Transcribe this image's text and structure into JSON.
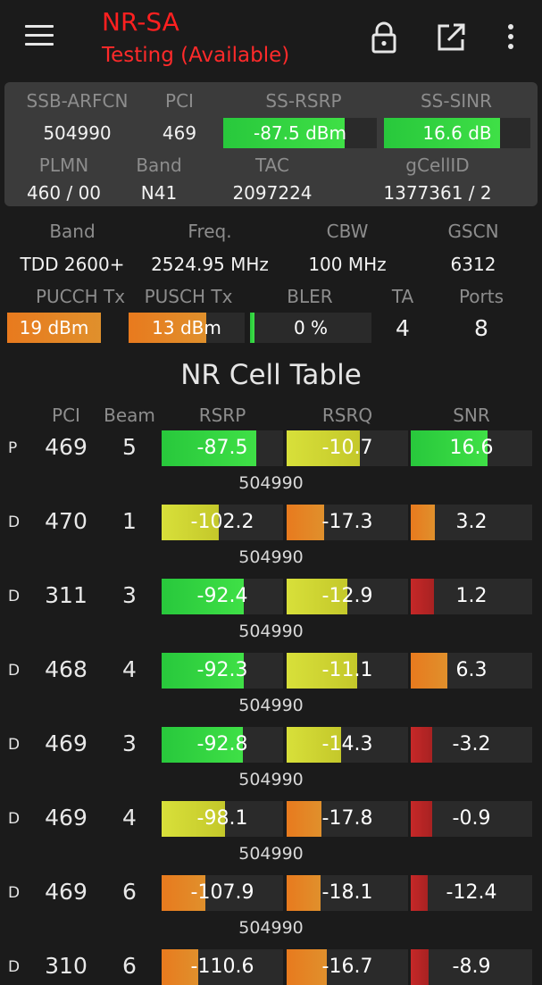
{
  "header": {
    "title": "NR-SA",
    "subtitle": "Testing (Available)",
    "icons": [
      "menu-icon",
      "lock-icon",
      "open-external-icon",
      "more-vert-icon"
    ]
  },
  "colors": {
    "title": "#ff2020",
    "green": "#3fe046",
    "yellow": "#d8e03a",
    "orange": "#e8801e",
    "red": "#c62828"
  },
  "summary": {
    "labels": {
      "ssb_arfcn": "SSB-ARFCN",
      "pci": "PCI",
      "ss_rsrp": "SS-RSRP",
      "ss_sinr": "SS-SINR",
      "plmn": "PLMN",
      "band": "Band",
      "tac": "TAC",
      "gcellid": "gCellID"
    },
    "values": {
      "ssb_arfcn": "504990",
      "pci": "469",
      "ss_rsrp": "-87.5 dBm",
      "ss_sinr": "16.6 dB",
      "plmn": "460 / 00",
      "band": "N41",
      "tac": "2097224",
      "gcellid": "1377361 / 2"
    },
    "ss_rsrp_level": 0.79,
    "ss_sinr_level": 0.79
  },
  "details": {
    "labels": {
      "band": "Band",
      "freq": "Freq.",
      "cbw": "CBW",
      "gscn": "GSCN",
      "pucch": "PUCCH Tx",
      "pusch": "PUSCH Tx",
      "bler": "BLER",
      "ta": "TA",
      "ports": "Ports"
    },
    "values": {
      "band": "TDD 2600+",
      "freq": "2524.95 MHz",
      "cbw": "100 MHz",
      "gscn": "6312",
      "pucch": "19 dBm",
      "pusch": "13 dBm",
      "bler": "0 %",
      "ta": "4",
      "ports": "8"
    },
    "pucch_level": 1.0,
    "pusch_level": 0.67,
    "bler_level": 0.04
  },
  "cell_table": {
    "title": "NR Cell Table",
    "headers": {
      "pci": "PCI",
      "beam": "Beam",
      "rsrp": "RSRP",
      "rsrq": "RSRQ",
      "snr": "SNR"
    },
    "rows": [
      {
        "type": "P",
        "pci": "469",
        "beam": "5",
        "rsrp": "-87.5",
        "rsrq": "-10.7",
        "snr": "16.6",
        "arfcn": "504990",
        "rsrp_level": 0.78,
        "rsrp_color": "green",
        "rsrq_level": 0.6,
        "rsrq_color": "yellow",
        "snr_level": 0.63,
        "snr_color": "green"
      },
      {
        "type": "D",
        "pci": "470",
        "beam": "1",
        "rsrp": "-102.2",
        "rsrq": "-17.3",
        "snr": "3.2",
        "arfcn": "504990",
        "rsrp_level": 0.47,
        "rsrp_color": "yellow",
        "rsrq_level": 0.31,
        "rsrq_color": "orange",
        "snr_level": 0.2,
        "snr_color": "orange"
      },
      {
        "type": "D",
        "pci": "311",
        "beam": "3",
        "rsrp": "-92.4",
        "rsrq": "-12.9",
        "snr": "1.2",
        "arfcn": "504990",
        "rsrp_level": 0.68,
        "rsrp_color": "green",
        "rsrq_level": 0.5,
        "rsrq_color": "yellow",
        "snr_level": 0.19,
        "snr_color": "red"
      },
      {
        "type": "D",
        "pci": "468",
        "beam": "4",
        "rsrp": "-92.3",
        "rsrq": "-11.1",
        "snr": "6.3",
        "arfcn": "504990",
        "rsrp_level": 0.68,
        "rsrp_color": "green",
        "rsrq_level": 0.58,
        "rsrq_color": "yellow",
        "snr_level": 0.3,
        "snr_color": "orange"
      },
      {
        "type": "D",
        "pci": "469",
        "beam": "3",
        "rsrp": "-92.8",
        "rsrq": "-14.3",
        "snr": "-3.2",
        "arfcn": "504990",
        "rsrp_level": 0.67,
        "rsrp_color": "green",
        "rsrq_level": 0.45,
        "rsrq_color": "yellow",
        "snr_level": 0.18,
        "snr_color": "red"
      },
      {
        "type": "D",
        "pci": "469",
        "beam": "4",
        "rsrp": "-98.1",
        "rsrq": "-17.8",
        "snr": "-0.9",
        "arfcn": "504990",
        "rsrp_level": 0.52,
        "rsrp_color": "yellow",
        "rsrq_level": 0.29,
        "rsrq_color": "orange",
        "snr_level": 0.18,
        "snr_color": "red"
      },
      {
        "type": "D",
        "pci": "469",
        "beam": "6",
        "rsrp": "-107.9",
        "rsrq": "-18.1",
        "snr": "-12.4",
        "arfcn": "504990",
        "rsrp_level": 0.36,
        "rsrp_color": "orange",
        "rsrq_level": 0.28,
        "rsrq_color": "orange",
        "snr_level": 0.14,
        "snr_color": "red"
      },
      {
        "type": "D",
        "pci": "310",
        "beam": "6",
        "rsrp": "-110.6",
        "rsrq": "-16.7",
        "snr": "-8.9",
        "arfcn": "",
        "rsrp_level": 0.3,
        "rsrp_color": "orange",
        "rsrq_level": 0.33,
        "rsrq_color": "orange",
        "snr_level": 0.15,
        "snr_color": "red"
      }
    ]
  }
}
